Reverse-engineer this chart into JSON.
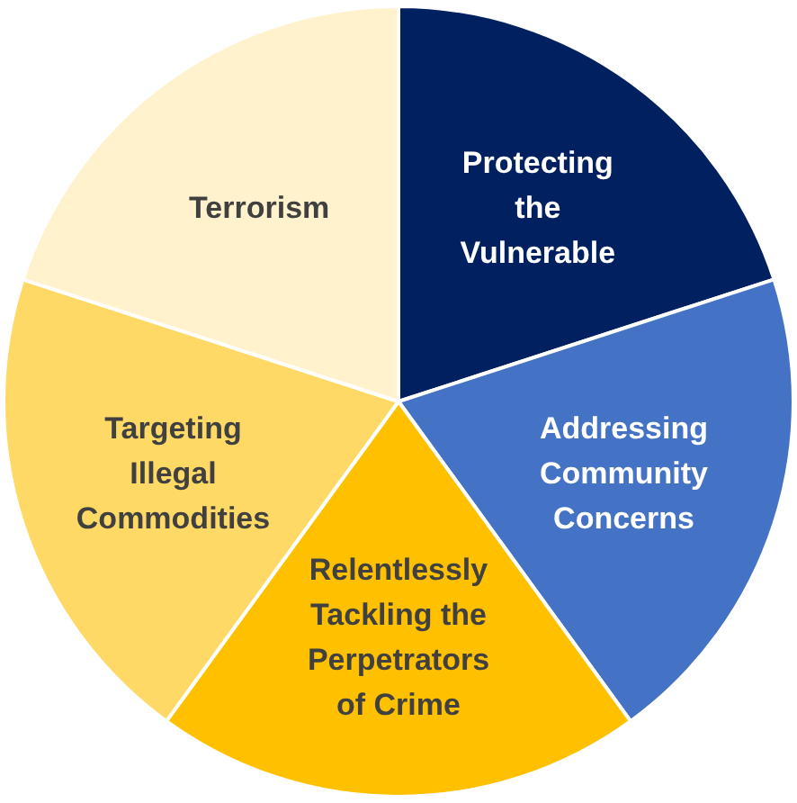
{
  "chart_data": {
    "type": "pie",
    "categories": [
      "Protecting the Vulnerable",
      "Addressing Community Concerns",
      "Relentlessly Tackling the Perpetrators of Crime",
      "Targeting Illegal Commodities",
      "Terrorism"
    ],
    "values": [
      20,
      20,
      20,
      20,
      20
    ],
    "colors": [
      "#002060",
      "#4472c4",
      "#ffc000",
      "#ffd966",
      "#fff2cc"
    ],
    "legend": false
  }
}
